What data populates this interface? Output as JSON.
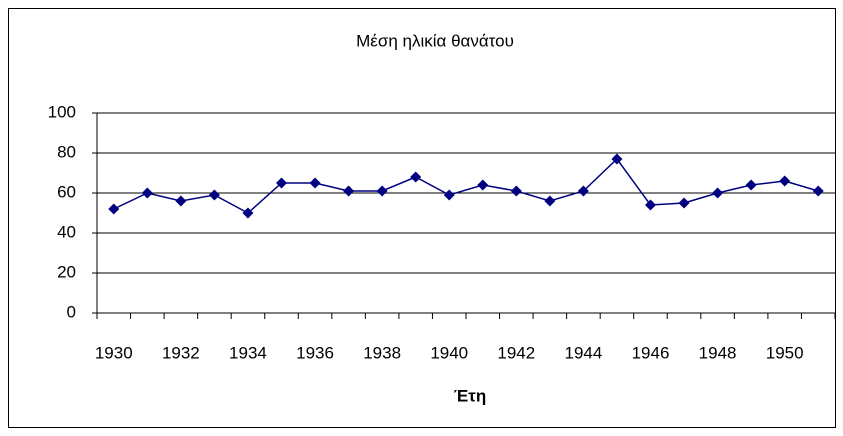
{
  "chart_data": {
    "type": "line",
    "title": "Μέση ηλικία θανάτου",
    "xlabel": "Έτη",
    "categories": [
      "1930",
      null,
      "1932",
      null,
      "1934",
      null,
      "1936",
      null,
      "1938",
      null,
      "1940",
      null,
      "1942",
      null,
      "1944",
      null,
      "1946",
      null,
      "1948",
      null,
      "1950",
      null
    ],
    "series": [
      {
        "name": "Μέση ηλικία θανάτου",
        "color": "#000080",
        "values": [
          52,
          60,
          56,
          59,
          50,
          65,
          65,
          61,
          61,
          68,
          59,
          64,
          61,
          56,
          61,
          77,
          54,
          55,
          60,
          64,
          66,
          61
        ]
      }
    ],
    "ylim": [
      0,
      100
    ],
    "yticks": [
      0,
      20,
      40,
      60,
      80,
      100
    ],
    "grid": true
  }
}
